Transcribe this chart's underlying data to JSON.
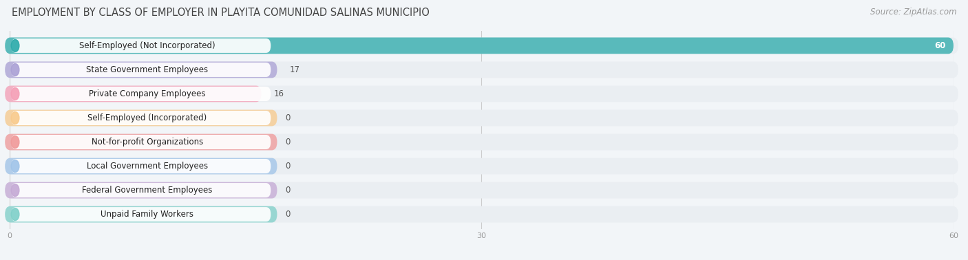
{
  "title": "EMPLOYMENT BY CLASS OF EMPLOYER IN PLAYITA COMUNIDAD SALINAS MUNICIPIO",
  "source": "Source: ZipAtlas.com",
  "categories": [
    "Self-Employed (Not Incorporated)",
    "State Government Employees",
    "Private Company Employees",
    "Self-Employed (Incorporated)",
    "Not-for-profit Organizations",
    "Local Government Employees",
    "Federal Government Employees",
    "Unpaid Family Workers"
  ],
  "values": [
    60,
    17,
    16,
    0,
    0,
    0,
    0,
    0
  ],
  "bar_colors": [
    "#29a9a9",
    "#a99fd4",
    "#f59db5",
    "#f8c98a",
    "#f09898",
    "#9ec3e8",
    "#c4a8d4",
    "#7dcfc8"
  ],
  "xlim": [
    0,
    60
  ],
  "xticks": [
    0,
    30,
    60
  ],
  "bg_color": "#f2f5f8",
  "row_bg_color": "#eaeef2",
  "title_fontsize": 10.5,
  "source_fontsize": 8.5,
  "label_fontsize": 8.5,
  "value_fontsize": 8.5
}
